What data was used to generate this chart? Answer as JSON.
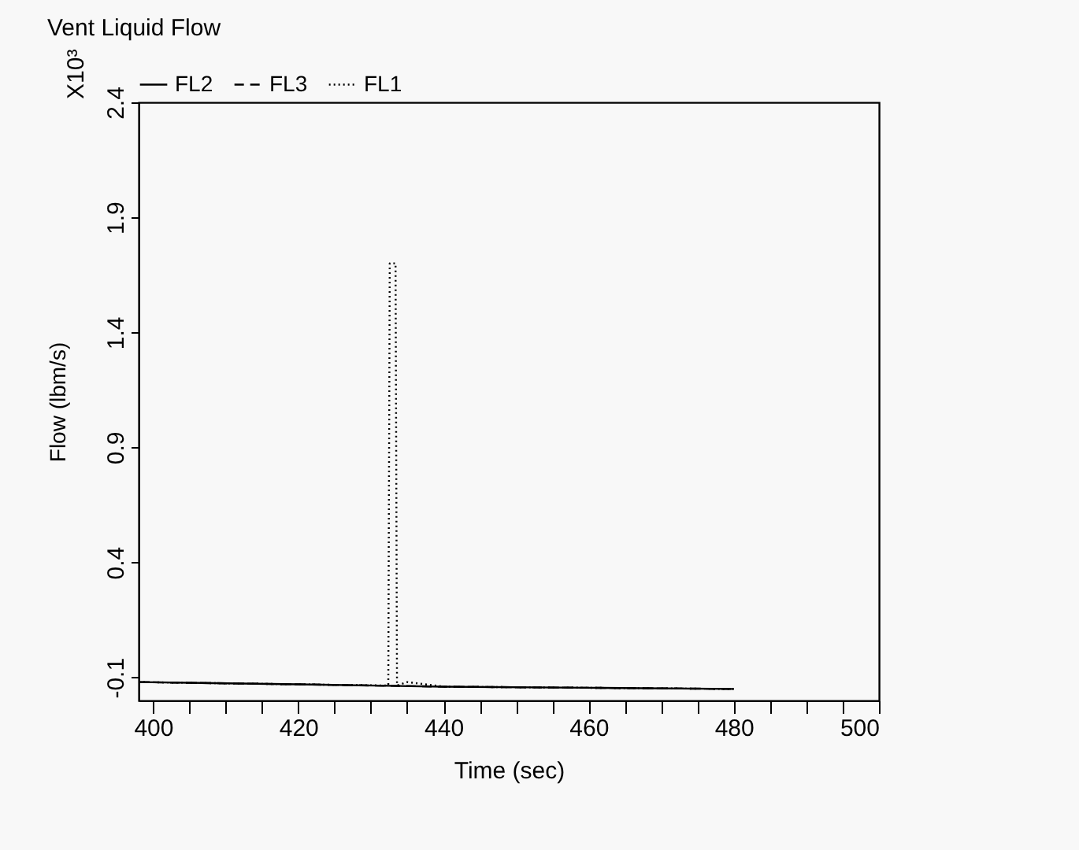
{
  "chart_data": {
    "type": "line",
    "title": "Vent Liquid Flow",
    "xlabel": "Time (sec)",
    "ylabel": "Flow (lbm/s)",
    "annotations": [
      "X10³"
    ],
    "xlim": [
      398,
      500
    ],
    "ylim": [
      -0.2,
      2.4
    ],
    "xticks": [
      400,
      {
        "value": 405,
        "label": null
      },
      {
        "value": 410,
        "label": null
      },
      {
        "value": 415,
        "label": null
      },
      420,
      {
        "value": 425,
        "label": null
      },
      {
        "value": 430,
        "label": null
      },
      {
        "value": 435,
        "label": null
      },
      440,
      {
        "value": 445,
        "label": null
      },
      {
        "value": 450,
        "label": null
      },
      {
        "value": 455,
        "label": null
      },
      460,
      {
        "value": 465,
        "label": null
      },
      {
        "value": 470,
        "label": null
      },
      {
        "value": 475,
        "label": null
      },
      480,
      {
        "value": 485,
        "label": null
      },
      {
        "value": 490,
        "label": null
      },
      {
        "value": 495,
        "label": null
      },
      500
    ],
    "yticks": [
      -0.1,
      0.4,
      0.9,
      1.4,
      1.9,
      2.4
    ],
    "grid": false,
    "legend": "top left",
    "series": [
      {
        "name": "FL2",
        "color": "#000000",
        "line_style": "solid",
        "x": [
          398,
          420,
          440,
          460,
          480
        ],
        "values": [
          -0.12,
          -0.13,
          -0.14,
          -0.145,
          -0.15
        ]
      },
      {
        "name": "FL3",
        "color": "#000000",
        "line_style": "dashed",
        "x": [
          398,
          420,
          440,
          460,
          480
        ],
        "values": [
          -0.12,
          -0.13,
          -0.14,
          -0.145,
          -0.15
        ]
      },
      {
        "name": "FL1",
        "color": "#000000",
        "line_style": "dotted",
        "x": [
          398,
          420,
          432.4,
          432.6,
          433.4,
          433.6,
          435,
          440,
          460,
          480
        ],
        "values": [
          -0.12,
          -0.13,
          -0.135,
          1.7,
          1.7,
          -0.135,
          -0.12,
          -0.14,
          -0.145,
          -0.15
        ]
      }
    ]
  }
}
